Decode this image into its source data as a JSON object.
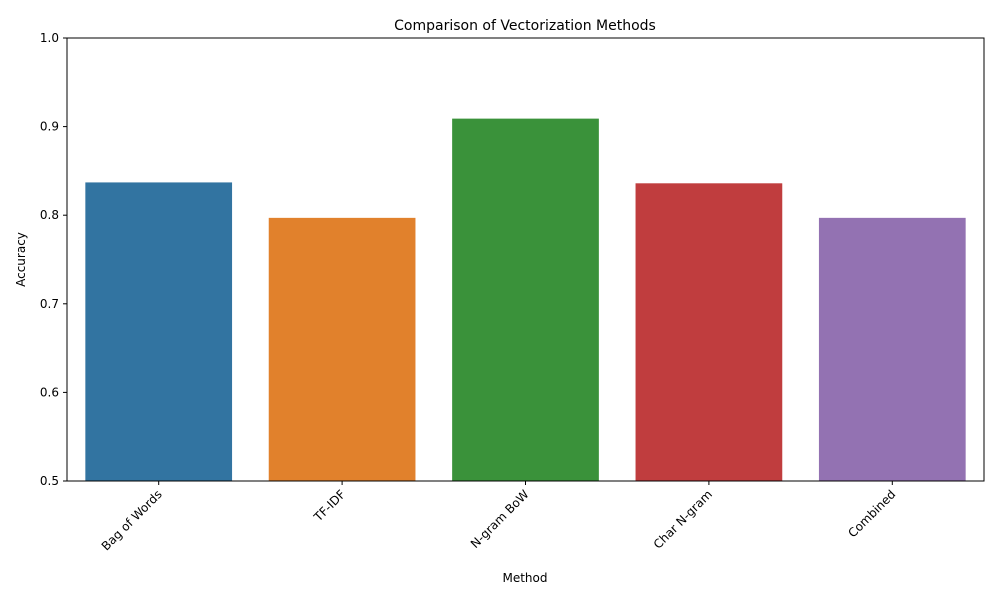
{
  "chart_data": {
    "type": "bar",
    "title": "Comparison of Vectorization Methods",
    "xlabel": "Method",
    "ylabel": "Accuracy",
    "ylim": [
      0.5,
      1.0
    ],
    "yticks": [
      "0.5",
      "0.6",
      "0.7",
      "0.8",
      "0.9",
      "1.0"
    ],
    "categories": [
      "Bag of Words",
      "TF-IDF",
      "N-gram BoW",
      "Char N-gram",
      "Combined"
    ],
    "values": [
      0.837,
      0.797,
      0.909,
      0.836,
      0.797
    ],
    "colors": [
      "#3274a1",
      "#e1812c",
      "#3a923a",
      "#c03d3e",
      "#9372b2"
    ],
    "grid": false,
    "legend": "none"
  }
}
